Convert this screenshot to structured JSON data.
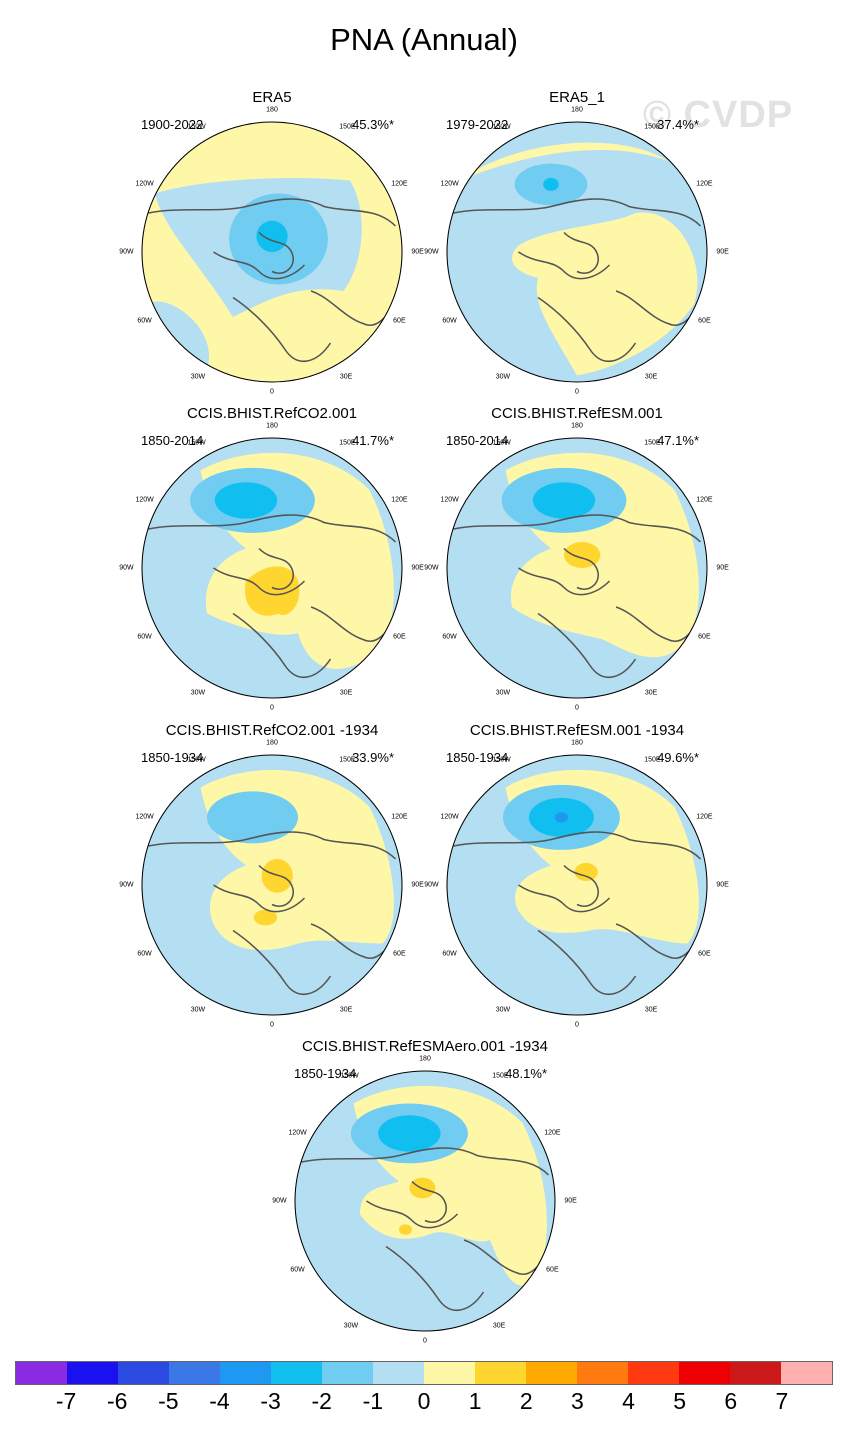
{
  "title": "PNA (Annual)",
  "watermark": "© CVDP",
  "lon_labels": {
    "l180": "180",
    "l150w": "150W",
    "l150e": "150E",
    "l120w": "120W",
    "l120e": "120E",
    "l90w": "90W",
    "l90e": "90E",
    "l60w": "60W",
    "l60e": "60E",
    "l30w": "30W",
    "l30e": "30E",
    "l0": "0"
  },
  "panels": [
    {
      "name": "ERA5",
      "period": "1900-2022",
      "pct": "45.3%*",
      "pattern": "era5"
    },
    {
      "name": "ERA5_1",
      "period": "1979-2022",
      "pct": "37.4%*",
      "pattern": "era5_1"
    },
    {
      "name": "CCIS.BHIST.RefCO2.001",
      "period": "1850-2014",
      "pct": "41.7%*",
      "pattern": "model_a"
    },
    {
      "name": "CCIS.BHIST.RefESM.001",
      "period": "1850-2014",
      "pct": "47.1%*",
      "pattern": "model_b"
    },
    {
      "name": "CCIS.BHIST.RefCO2.001 -1934",
      "period": "1850-1934",
      "pct": "33.9%*",
      "pattern": "model_c"
    },
    {
      "name": "CCIS.BHIST.RefESM.001 -1934",
      "period": "1850-1934",
      "pct": "49.6%*",
      "pattern": "model_d"
    },
    {
      "name": "CCIS.BHIST.RefESMAero.001 -1934",
      "period": "1850-1934",
      "pct": "48.1%*",
      "pattern": "model_e"
    }
  ],
  "colorbar": {
    "colors": [
      "#8a2be2",
      "#1a10f0",
      "#2a4ae0",
      "#3a78e8",
      "#1e98f0",
      "#10bff0",
      "#70ccf0",
      "#b4dff2",
      "#fff7a8",
      "#ffd530",
      "#ffaa00",
      "#ff7a10",
      "#ff3a10",
      "#ee0000",
      "#cc1818",
      "#ffb0b0"
    ],
    "labels": [
      "-7",
      "-6",
      "-5",
      "-4",
      "-3",
      "-2",
      "-1",
      "0",
      "1",
      "2",
      "3",
      "4",
      "5",
      "6",
      "7"
    ]
  }
}
